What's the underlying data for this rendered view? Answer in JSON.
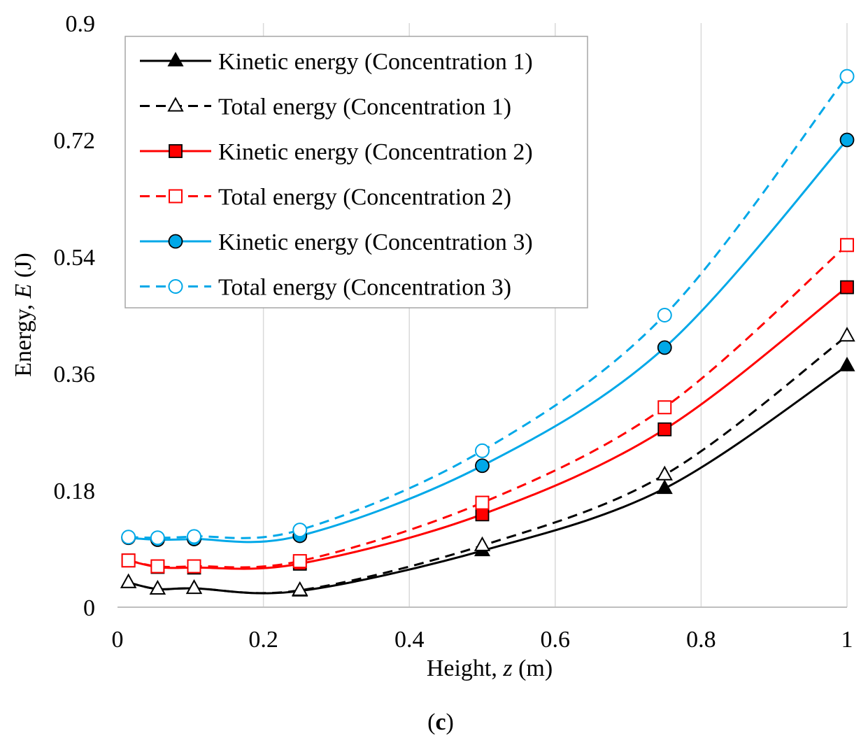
{
  "chart_data": {
    "type": "line",
    "title": "",
    "xlabel": {
      "prefix": "Height, ",
      "var": "z",
      "unit": " (m)"
    },
    "ylabel": {
      "prefix": "Energy, ",
      "var": "E",
      "unit": " (J)"
    },
    "xlim": [
      0,
      1
    ],
    "ylim": [
      0,
      0.9
    ],
    "xticks": [
      0,
      0.2,
      0.4,
      0.6,
      0.8,
      1
    ],
    "xtick_labels": [
      "0",
      "0.2",
      "0.4",
      "0.6",
      "0.8",
      "1"
    ],
    "yticks": [
      0,
      0.18,
      0.36,
      0.54,
      0.72,
      0.9
    ],
    "ytick_labels": [
      "0",
      "0.18",
      "0.36",
      "0.54",
      "0.72",
      "0.9"
    ],
    "grid": "vertical",
    "legend_position": "top-left",
    "caption": {
      "open": "(",
      "letter": "c",
      "close": ")"
    },
    "series": [
      {
        "name": "Kinetic energy (Concentration 1)",
        "color": "#000000",
        "dash": "solid",
        "marker": "triangle",
        "filled": true,
        "x": [
          0.015,
          0.055,
          0.105,
          0.25,
          0.5,
          0.75,
          1.0
        ],
        "y": [
          0.038,
          0.028,
          0.029,
          0.025,
          0.087,
          0.183,
          0.372
        ]
      },
      {
        "name": "Total energy (Concentration 1)",
        "color": "#000000",
        "dash": "dashed",
        "marker": "triangle",
        "filled": false,
        "x": [
          0.015,
          0.055,
          0.105,
          0.25,
          0.5,
          0.75,
          1.0
        ],
        "y": [
          0.038,
          0.028,
          0.029,
          0.026,
          0.095,
          0.204,
          0.418
        ]
      },
      {
        "name": "Kinetic energy (Concentration 2)",
        "color": "#ff0000",
        "dash": "solid",
        "marker": "square",
        "filled": true,
        "x": [
          0.015,
          0.055,
          0.105,
          0.25,
          0.5,
          0.75,
          1.0
        ],
        "y": [
          0.072,
          0.062,
          0.061,
          0.067,
          0.143,
          0.274,
          0.493
        ]
      },
      {
        "name": "Total energy (Concentration 2)",
        "color": "#ff0000",
        "dash": "dashed",
        "marker": "square",
        "filled": false,
        "x": [
          0.015,
          0.055,
          0.105,
          0.25,
          0.5,
          0.75,
          1.0
        ],
        "y": [
          0.072,
          0.063,
          0.063,
          0.071,
          0.161,
          0.308,
          0.558
        ]
      },
      {
        "name": "Kinetic energy (Concentration 3)",
        "color": "#00a8e8",
        "dash": "solid",
        "marker": "circle",
        "filled": true,
        "x": [
          0.015,
          0.055,
          0.105,
          0.25,
          0.5,
          0.75,
          1.0
        ],
        "y": [
          0.107,
          0.104,
          0.105,
          0.11,
          0.218,
          0.4,
          0.72
        ]
      },
      {
        "name": "Total energy (Concentration 3)",
        "color": "#00a8e8",
        "dash": "dashed",
        "marker": "circle",
        "filled": false,
        "x": [
          0.015,
          0.055,
          0.105,
          0.25,
          0.5,
          0.75,
          1.0
        ],
        "y": [
          0.108,
          0.107,
          0.109,
          0.119,
          0.241,
          0.45,
          0.818
        ]
      }
    ]
  }
}
